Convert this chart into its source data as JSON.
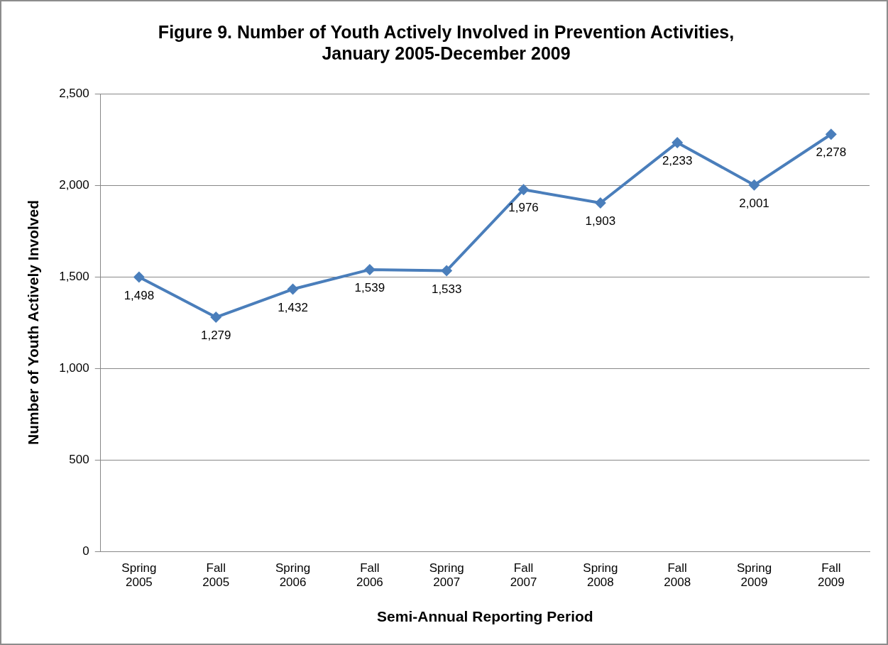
{
  "chart_data": {
    "type": "line",
    "title": "Figure 9. Number of Youth Actively Involved in Prevention Activities, January 2005-December 2009",
    "xlabel": "Semi-Annual Reporting Period",
    "ylabel": "Number of Youth Actively Involved",
    "categories": [
      "Spring 2005",
      "Fall 2005",
      "Spring 2006",
      "Fall 2006",
      "Spring 2007",
      "Fall 2007",
      "Spring 2008",
      "Fall 2008",
      "Spring 2009",
      "Fall 2009"
    ],
    "series": [
      {
        "color": "#4a7ebb",
        "values": [
          1498,
          1279,
          1432,
          1539,
          1533,
          1976,
          1903,
          2233,
          2001,
          2278
        ],
        "value_labels": [
          "1,498",
          "1,279",
          "1,432",
          "1,539",
          "1,533",
          "1,976",
          "1,903",
          "2,233",
          "2,001",
          "2,278"
        ]
      }
    ],
    "ylim": [
      0,
      2500
    ],
    "yticks": [
      0,
      500,
      {
        "value": 1000,
        "label": "1,000"
      },
      {
        "value": 1500,
        "label": "1,500"
      },
      {
        "value": 2000,
        "label": "2,000"
      },
      {
        "value": 2500,
        "label": "2,500"
      }
    ],
    "grid": "y",
    "legend": false,
    "marker": "diamond",
    "line_style": "solid"
  }
}
